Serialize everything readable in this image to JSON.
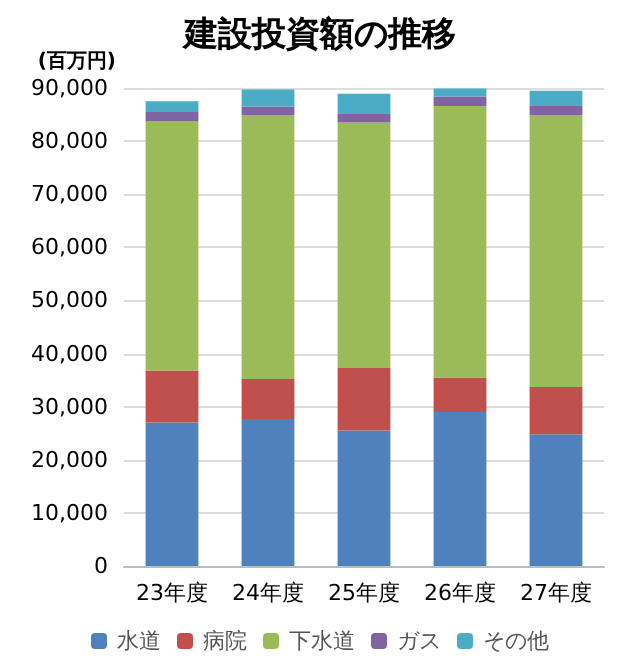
{
  "chart_data": {
    "type": "bar",
    "title": "建設投資額の推移",
    "ylabel": "(百万円)",
    "categories": [
      "23年度",
      "24年度",
      "25年度",
      "26年度",
      "27年度"
    ],
    "stacked": true,
    "series": [
      {
        "name": "水道",
        "color": "#4f81bd",
        "values": [
          27000,
          27700,
          25500,
          29000,
          24800
        ]
      },
      {
        "name": "病院",
        "color": "#c0504d",
        "values": [
          9800,
          7500,
          11800,
          6500,
          8900
        ]
      },
      {
        "name": "下水道",
        "color": "#9bbb59",
        "values": [
          47000,
          49600,
          46200,
          51100,
          51100
        ]
      },
      {
        "name": "ガス",
        "color": "#8064a2",
        "values": [
          1700,
          1700,
          1600,
          1800,
          1800
        ]
      },
      {
        "name": "その他",
        "color": "#4bacc6",
        "values": [
          2000,
          3200,
          3800,
          1500,
          2900
        ]
      }
    ],
    "ylim": [
      0,
      90000
    ],
    "yticks": [
      0,
      {
        "value": 10000,
        "label": "10,000"
      },
      {
        "value": 20000,
        "label": "20,000"
      },
      {
        "value": 30000,
        "label": "30,000"
      },
      {
        "value": 40000,
        "label": "40,000"
      },
      {
        "value": 50000,
        "label": "50,000"
      },
      {
        "value": 60000,
        "label": "60,000"
      },
      {
        "value": 70000,
        "label": "70,000"
      },
      {
        "value": 80000,
        "label": "80,000"
      },
      {
        "value": 90000,
        "label": "90,000"
      }
    ],
    "grid": "y",
    "legend": "bottom"
  }
}
